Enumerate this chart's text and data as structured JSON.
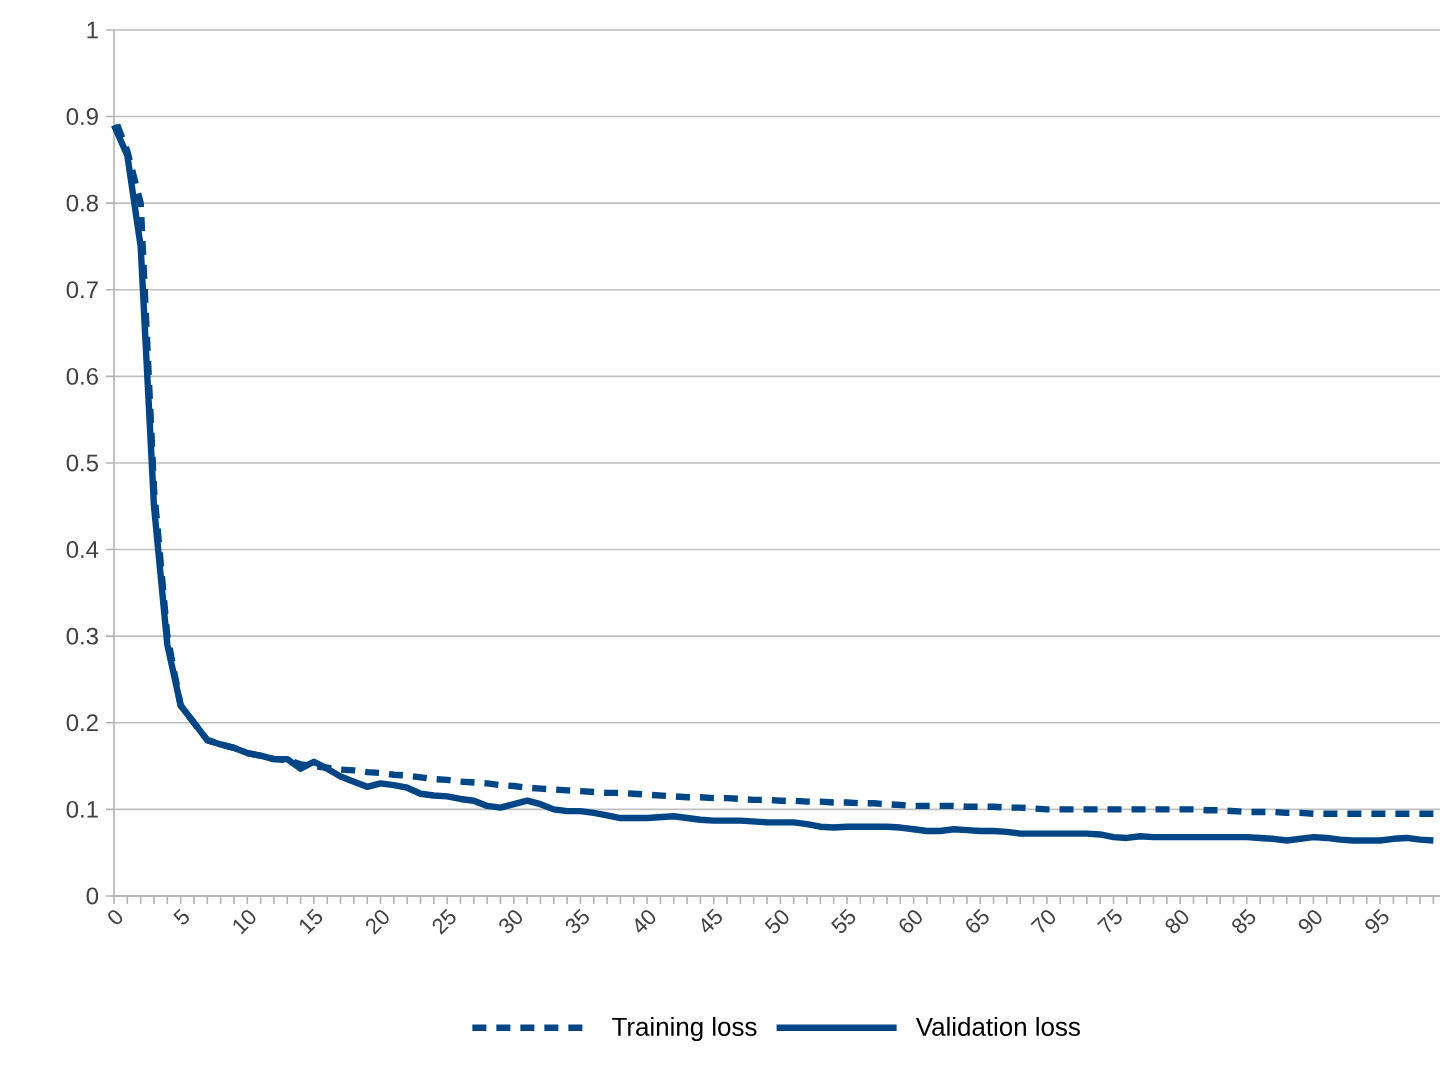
{
  "chart_data": {
    "type": "line",
    "categories": [
      "0",
      null,
      null,
      null,
      null,
      "5",
      null,
      null,
      null,
      null,
      "10",
      null,
      null,
      null,
      null,
      "15",
      null,
      null,
      null,
      null,
      "20",
      null,
      null,
      null,
      null,
      "25",
      null,
      null,
      null,
      null,
      "30",
      null,
      null,
      null,
      null,
      "35",
      null,
      null,
      null,
      null,
      "40",
      null,
      null,
      null,
      null,
      "45",
      null,
      null,
      null,
      null,
      "50",
      null,
      null,
      null,
      null,
      "55",
      null,
      null,
      null,
      null,
      "60",
      null,
      null,
      null,
      null,
      "65",
      null,
      null,
      null,
      null,
      "70",
      null,
      null,
      null,
      null,
      "75",
      null,
      null,
      null,
      null,
      "80",
      null,
      null,
      null,
      null,
      "85",
      null,
      null,
      null,
      null,
      "90",
      null,
      null,
      null,
      null,
      "95",
      null,
      null,
      null,
      null
    ],
    "series": [
      {
        "name": "Training loss",
        "color": "#004586",
        "line_style": "dashed",
        "values": [
          0.9,
          0.86,
          0.8,
          0.47,
          0.3,
          0.22,
          0.2,
          0.18,
          0.175,
          0.171,
          0.165,
          0.162,
          0.158,
          0.157,
          0.152,
          0.15,
          0.148,
          0.146,
          0.145,
          0.143,
          0.142,
          0.14,
          0.139,
          0.137,
          0.135,
          0.134,
          0.132,
          0.131,
          0.13,
          0.128,
          0.127,
          0.125,
          0.124,
          0.123,
          0.122,
          0.121,
          0.12,
          0.119,
          0.119,
          0.118,
          0.117,
          0.116,
          0.115,
          0.114,
          0.114,
          0.113,
          0.113,
          0.112,
          0.111,
          0.111,
          0.11,
          0.11,
          0.109,
          0.109,
          0.108,
          0.108,
          0.107,
          0.107,
          0.106,
          0.105,
          0.104,
          0.104,
          0.104,
          0.104,
          0.103,
          0.103,
          0.103,
          0.102,
          0.102,
          0.101,
          0.1,
          0.1,
          0.1,
          0.1,
          0.1,
          0.1,
          0.1,
          0.1,
          0.1,
          0.1,
          0.1,
          0.1,
          0.099,
          0.099,
          0.098,
          0.097,
          0.097,
          0.097,
          0.096,
          0.096,
          0.095,
          0.095,
          0.095,
          0.095,
          0.095,
          0.095,
          0.095,
          0.095,
          0.095,
          0.095
        ]
      },
      {
        "name": "Validation loss",
        "color": "#004586",
        "line_style": "solid",
        "values": [
          0.89,
          0.855,
          0.75,
          0.45,
          0.29,
          0.22,
          0.2,
          0.18,
          0.175,
          0.171,
          0.165,
          0.162,
          0.158,
          0.158,
          0.147,
          0.155,
          0.147,
          0.138,
          0.132,
          0.126,
          0.13,
          0.128,
          0.125,
          0.118,
          0.116,
          0.115,
          0.112,
          0.11,
          0.104,
          0.102,
          0.106,
          0.11,
          0.106,
          0.1,
          0.098,
          0.098,
          0.096,
          0.093,
          0.09,
          0.09,
          0.09,
          0.091,
          0.092,
          0.09,
          0.088,
          0.087,
          0.087,
          0.087,
          0.086,
          0.085,
          0.085,
          0.085,
          0.083,
          0.08,
          0.079,
          0.08,
          0.08,
          0.08,
          0.08,
          0.079,
          0.077,
          0.075,
          0.075,
          0.077,
          0.076,
          0.075,
          0.075,
          0.074,
          0.072,
          0.072,
          0.072,
          0.072,
          0.072,
          0.072,
          0.071,
          0.068,
          0.067,
          0.069,
          0.068,
          0.068,
          0.068,
          0.068,
          0.068,
          0.068,
          0.068,
          0.068,
          0.067,
          0.066,
          0.064,
          0.066,
          0.068,
          0.067,
          0.065,
          0.064,
          0.064,
          0.064,
          0.066,
          0.067,
          0.065,
          0.064
        ]
      }
    ],
    "ylim": [
      0,
      1
    ],
    "yticks": [
      0,
      0.1,
      0.2,
      0.3,
      0.4,
      0.5,
      0.6,
      0.7,
      0.8,
      0.9,
      1
    ],
    "grid": "y",
    "legend": "bottom",
    "marker": "none"
  }
}
